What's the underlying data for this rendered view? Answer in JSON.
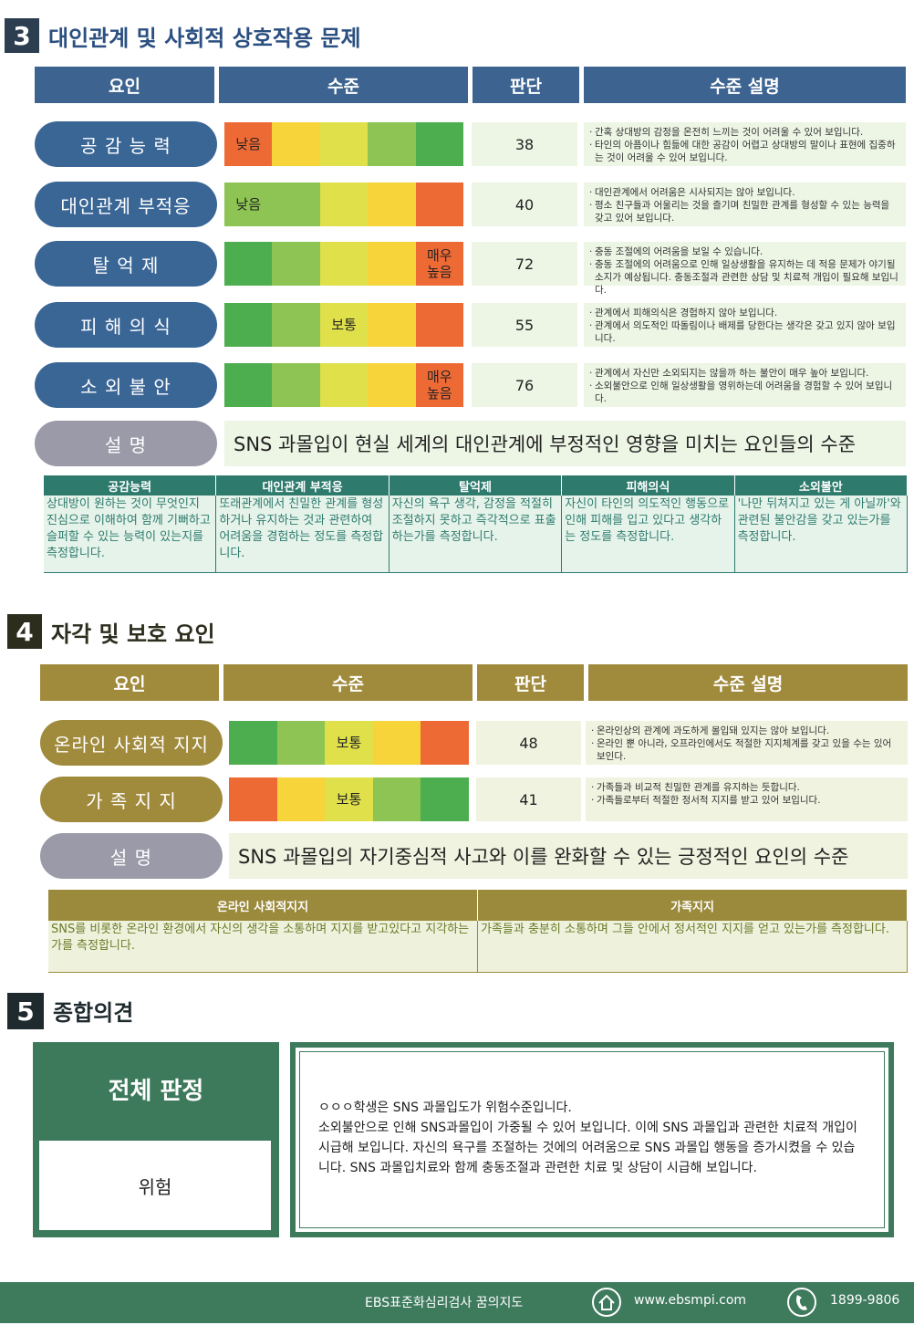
{
  "section3": {
    "number": "3",
    "title": "대인관계 및 사회적 상호작용 문제",
    "headers": [
      "요인",
      "수준",
      "판단",
      "수준 설명"
    ],
    "rows": [
      {
        "factor": "공 감 능 력",
        "cells": [
          {
            "color": "#ee6a35",
            "label": "낮음"
          },
          {
            "color": "#f6d43a"
          },
          {
            "color": "#dfe04a"
          },
          {
            "color": "#8dc453"
          },
          {
            "color": "#4cae4f"
          }
        ],
        "score": 38,
        "description": [
          "간혹 상대방의 감정을 온전히 느끼는 것이 어려울 수 있어 보입니다.",
          "타인의 아픔이나 힘듦에 대한 공감이 어렵고 상대방의 말이나 표현에 집중하는 것이 어려울 수 있어 보입니다."
        ]
      },
      {
        "factor": "대인관계 부적응",
        "cells": [
          {
            "color": "#8dc453",
            "label": "낮음"
          },
          {
            "color": "#8dc453"
          },
          {
            "color": "#dfe04a"
          },
          {
            "color": "#f6d43a"
          },
          {
            "color": "#ee6a35"
          }
        ],
        "score": 40,
        "description": [
          "대인관계에서 어려움은 시사되지는 않아 보입니다.",
          "평소 친구들과 어울리는 것을 즐기며 친밀한 관계를 형성할 수 있는 능력을 갖고 있어 보입니다."
        ]
      },
      {
        "factor": "탈 억 제",
        "cells": [
          {
            "color": "#4cae4f"
          },
          {
            "color": "#8dc453"
          },
          {
            "color": "#dfe04a"
          },
          {
            "color": "#f6d43a"
          },
          {
            "color": "#ee6a35",
            "label": "매우\n높음"
          }
        ],
        "score": 72,
        "description": [
          "충동 조절에의 어려움을 보일 수 있습니다.",
          "충동 조절에의 어려움으로 인해 일상생활을 유지하는 데 적응 문제가 야기될 소지가 예상됩니다. 충동조절과 관련한 상담 및 치료적 개입이 필요해 보입니다."
        ]
      },
      {
        "factor": "피 해 의 식",
        "cells": [
          {
            "color": "#4cae4f"
          },
          {
            "color": "#8dc453"
          },
          {
            "color": "#dfe04a",
            "label": "보통"
          },
          {
            "color": "#f6d43a"
          },
          {
            "color": "#ee6a35"
          }
        ],
        "score": 55,
        "description": [
          "관계에서 피해의식은 경험하지 않아 보입니다.",
          "관계에서 의도적인 따돌림이나 배제를 당한다는 생각은 갖고 있지 않아 보입니다."
        ]
      },
      {
        "factor": "소 외 불 안",
        "cells": [
          {
            "color": "#4cae4f"
          },
          {
            "color": "#8dc453"
          },
          {
            "color": "#dfe04a"
          },
          {
            "color": "#f6d43a"
          },
          {
            "color": "#ee6a35",
            "label": "매우\n높음"
          }
        ],
        "score": 76,
        "description": [
          "관계에서 자신만 소외되지는 않을까 하는 불안이 매우 높아 보입니다.",
          "소외불안으로 인해 일상생활을 영위하는데 어려움을 경험할 수 있어 보입니다."
        ]
      }
    ],
    "explanation": {
      "label": "설 명",
      "text": "SNS 과몰입이 현실 세계의 대인관계에 부정적인 영향을 미치는 요인들의 수준"
    },
    "definitions": {
      "headers": [
        "공감능력",
        "대인관계 부적응",
        "탈억제",
        "피해의식",
        "소외불안"
      ],
      "texts": [
        "상대방이 원하는 것이 무엇인지 진심으로 이해하여 함께 기뻐하고 슬퍼할 수 있는 능력이 있는지를 측정합니다.",
        "또래관계에서 친밀한 관계를 형성하거나 유지하는 것과 관련하여 어려움을 경험하는 정도를 측정합니다.",
        "자신의 욕구 생각, 감정을 적절히 조절하지 못하고 즉각적으로 표출하는가를 측정합니다.",
        "자신이 타인의 의도적인 행동으로 인해 피해를 입고 있다고 생각하는 정도를 측정합니다.",
        "'나만 뒤쳐지고 있는 게 아닐까'와 관련된 불안감을 갖고 있는가를 측정합니다."
      ]
    }
  },
  "section4": {
    "number": "4",
    "title": "자각 및 보호 요인",
    "headers": [
      "요인",
      "수준",
      "판단",
      "수준 설명"
    ],
    "rows": [
      {
        "factor": "온라인 사회적 지지",
        "cells": [
          {
            "color": "#4cae4f"
          },
          {
            "color": "#8dc453"
          },
          {
            "color": "#dfe04a",
            "label": "보통"
          },
          {
            "color": "#f6d43a"
          },
          {
            "color": "#ee6a35"
          }
        ],
        "score": 48,
        "description": [
          "온라인상의 관계에 과도하게 몰입돼 있지는 않아 보입니다.",
          "온라인 뿐 아니라, 오프라인에서도 적절한 지지체계를 갖고 있을 수는 있어 보인다."
        ]
      },
      {
        "factor": "가 족 지 지",
        "cells": [
          {
            "color": "#ee6a35"
          },
          {
            "color": "#f6d43a"
          },
          {
            "color": "#dfe04a",
            "label": "보통"
          },
          {
            "color": "#8dc453"
          },
          {
            "color": "#4cae4f"
          }
        ],
        "score": 41,
        "description": [
          "가족들과 비교적 친밀한 관계를 유지하는 듯합니다.",
          "가족들로부터 적절한 정서적 지지를 받고 있어 보입니다."
        ]
      }
    ],
    "explanation": {
      "label": "설 명",
      "text": "SNS 과몰입의 자기중심적 사고와 이를 완화할 수 있는 긍정적인 요인의 수준"
    },
    "definitions": {
      "headers": [
        "온라인 사회적지지",
        "가족지지"
      ],
      "texts": [
        "SNS를 비롯한 온라인 환경에서 자신의 생각을 소통하며 지지를 받고있다고 지각하는가를 측정합니다.",
        "가족들과 충분히 소통하며 그들 안에서 정서적인 지지를 얻고 있는가를 측정합니다."
      ]
    }
  },
  "section5": {
    "number": "5",
    "title": "종합의견",
    "verdict_title": "전체 판정",
    "verdict": "위험",
    "opinion": [
      "ㅇㅇㅇ학생은 SNS 과몰입도가 위험수준입니다.",
      "소외불안으로 인해 SNS과몰입이 가중될 수 있어 보입니다. 이에 SNS 과몰입과 관련한 치료적 개입이 시급해 보입니다. 자신의 욕구를 조절하는 것에의 어려움으로 SNS 과몰입 행동을 증가시켰을 수 있습니다. SNS 과몰입치료와 함께 충동조절과 관련한 치료 및 상담이 시급해 보입니다."
    ]
  },
  "footer": {
    "brand": "EBS표준화심리검사 꿈의지도",
    "website": "www.ebsmpi.com",
    "phone": "1899-9806"
  }
}
